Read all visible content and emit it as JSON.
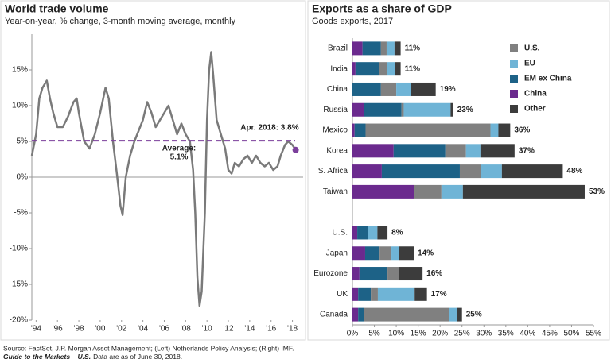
{
  "chart_data": [
    {
      "type": "line",
      "title": "World trade volume",
      "subtitle": "Year-on-year, % change, 3-month moving average, monthly",
      "x": [
        1993.6,
        1994.0,
        1994.3,
        1994.6,
        1995.0,
        1995.3,
        1995.6,
        1996.0,
        1996.5,
        1997.0,
        1997.5,
        1997.8,
        1998.0,
        1998.5,
        1999.0,
        1999.5,
        2000.0,
        2000.5,
        2000.8,
        2001.2,
        2001.6,
        2001.9,
        2002.1,
        2002.4,
        2002.8,
        2003.2,
        2003.6,
        2004.0,
        2004.4,
        2004.8,
        2005.2,
        2005.6,
        2006.0,
        2006.4,
        2006.8,
        2007.2,
        2007.6,
        2008.0,
        2008.4,
        2008.7,
        2008.9,
        2009.1,
        2009.3,
        2009.5,
        2009.8,
        2010.0,
        2010.2,
        2010.4,
        2010.6,
        2010.9,
        2011.3,
        2011.7,
        2012.0,
        2012.3,
        2012.6,
        2013.0,
        2013.4,
        2013.8,
        2014.2,
        2014.6,
        2015.0,
        2015.4,
        2015.8,
        2016.2,
        2016.6,
        2016.9,
        2017.3,
        2017.6,
        2018.0,
        2018.3
      ],
      "series": [
        {
          "color": "#7a7a7a",
          "values": [
            3,
            6,
            11,
            12.5,
            13.5,
            11,
            9,
            7,
            7,
            8.5,
            10.5,
            11,
            9,
            5,
            4,
            6,
            9,
            12.5,
            11,
            5,
            0,
            -4,
            -5.3,
            0,
            3,
            5,
            6.5,
            8,
            10.5,
            9,
            7,
            8,
            9,
            10,
            8,
            6,
            7.5,
            6,
            5,
            1,
            -5,
            -14,
            -18,
            -16,
            -5,
            8,
            15,
            17.5,
            14,
            8,
            6,
            4,
            1,
            0.5,
            2,
            1.5,
            2.5,
            3,
            2,
            3,
            2,
            1.5,
            2,
            1,
            1.5,
            3,
            4.5,
            5,
            4.5,
            3.8
          ]
        }
      ],
      "average": {
        "value": 5.1,
        "color": "#7b3f9b",
        "label": "Average:",
        "value_label": "5.1%"
      },
      "end_label": "Apr. 2018: 3.8%",
      "xlim": [
        1993.6,
        2019
      ],
      "xticks": [
        {
          "value": 1994,
          "label": "'94"
        },
        {
          "value": 1996,
          "label": "'96"
        },
        {
          "value": 1998,
          "label": "'98"
        },
        {
          "value": 2000,
          "label": "'00"
        },
        {
          "value": 2002,
          "label": "'02"
        },
        {
          "value": 2004,
          "label": "'04"
        },
        {
          "value": 2006,
          "label": "'06"
        },
        {
          "value": 2008,
          "label": "'08"
        },
        {
          "value": 2010,
          "label": "'10"
        },
        {
          "value": 2012,
          "label": "'12"
        },
        {
          "value": 2014,
          "label": "'14"
        },
        {
          "value": 2016,
          "label": "'16"
        },
        {
          "value": 2018,
          "label": "'18"
        }
      ],
      "ylim": [
        -20,
        20
      ],
      "yticks": [
        {
          "value": -20,
          "label": "-20%"
        },
        {
          "value": -15,
          "label": "-15%"
        },
        {
          "value": -10,
          "label": "-10%"
        },
        {
          "value": -5,
          "label": "-5%"
        },
        {
          "value": 0,
          "label": "0%"
        },
        {
          "value": 5,
          "label": "5%"
        },
        {
          "value": 10,
          "label": "10%"
        },
        {
          "value": 15,
          "label": "15%"
        }
      ],
      "grid": false
    },
    {
      "type": "stacked_barh",
      "title": "Exports as a share of GDP",
      "subtitle": "Goods exports, 2017",
      "categories": [
        "Brazil",
        "India",
        "China",
        "Russia",
        "Mexico",
        "Korea",
        "S. Africa",
        "Taiwan",
        null,
        "U.S.",
        "Japan",
        "Eurozone",
        "UK",
        "Canada"
      ],
      "series": [
        {
          "name": "U.S.",
          "color": "#808080",
          "values": [
            1.3,
            1.8,
            3.5,
            0.5,
            28.5,
            4.7,
            4.9,
            6.3,
            null,
            0,
            2.7,
            2.7,
            1.6,
            19.4
          ]
        },
        {
          "name": "EU",
          "color": "#6fb4d6",
          "values": [
            1.8,
            1.8,
            3.3,
            10.7,
            1.8,
            3.3,
            4.7,
            4.9,
            null,
            2.2,
            1.8,
            0,
            8.4,
            1.8
          ]
        },
        {
          "name": "EM ex China",
          "color": "#1d6287",
          "values": [
            4.2,
            5.4,
            6.5,
            8.5,
            2.5,
            11.8,
            17.8,
            0,
            null,
            2.4,
            3.3,
            6.4,
            2.9,
            1.4
          ]
        },
        {
          "name": "China",
          "color": "#6b2a8e",
          "values": [
            2.3,
            0.7,
            0,
            2.7,
            0.5,
            9.4,
            6.7,
            14,
            null,
            1.1,
            2.9,
            1.6,
            1.3,
            1.3
          ]
        },
        {
          "name": "Other",
          "color": "#3c3c3c",
          "values": [
            1.4,
            1.3,
            5.7,
            0.6,
            2.7,
            7.8,
            13.9,
            27.8,
            null,
            2.3,
            3.3,
            5.3,
            2.8,
            1.1
          ]
        }
      ],
      "total_labels": [
        "11%",
        "11%",
        "19%",
        "23%",
        "36%",
        "37%",
        "48%",
        "53%",
        null,
        "8%",
        "14%",
        "16%",
        "17%",
        "25%"
      ],
      "xlim": [
        0,
        55
      ],
      "xticks": [
        {
          "value": 0,
          "label": "0%"
        },
        {
          "value": 5,
          "label": "5%"
        },
        {
          "value": 10,
          "label": "10%"
        },
        {
          "value": 15,
          "label": "15%"
        },
        {
          "value": 20,
          "label": "20%"
        },
        {
          "value": 25,
          "label": "25%"
        },
        {
          "value": 30,
          "label": "30%"
        },
        {
          "value": 35,
          "label": "35%"
        },
        {
          "value": 40,
          "label": "40%"
        },
        {
          "value": 45,
          "label": "45%"
        },
        {
          "value": 50,
          "label": "50%"
        },
        {
          "value": 55,
          "label": "55%"
        }
      ],
      "legend": "upper right"
    }
  ],
  "footnotes": {
    "source": "Source: FactSet, J.P. Morgan Asset Management; (Left) Netherlands Policy Analysis; (Right) IMF.",
    "guide": "Guide to the Markets – U.S.",
    "note": "Data are as of June 30, 2018."
  }
}
